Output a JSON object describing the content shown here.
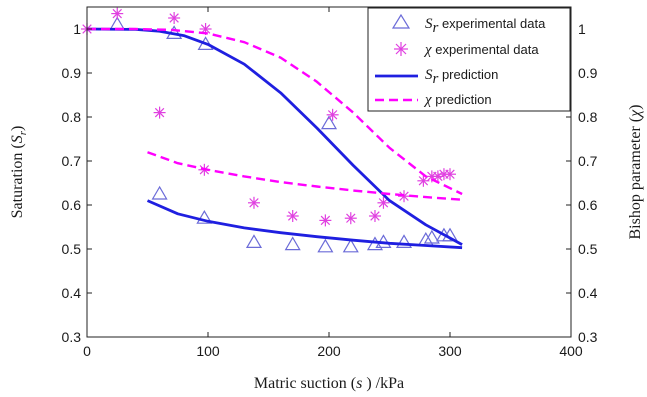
{
  "chart_data": {
    "type": "line",
    "xlabel": {
      "before": "Matric suction (",
      "symbol": "s",
      "after": " ) /kPa"
    },
    "ylabel_left": {
      "before": "Saturation (",
      "symbol": "S",
      "sub": "r",
      "after": ")"
    },
    "ylabel_right": {
      "before": "Bishop parameter (",
      "symbol": "χ",
      "after": ")"
    },
    "xlim": [
      0,
      400
    ],
    "ylim": [
      0.3,
      1.05
    ],
    "x_ticks": [
      0,
      100,
      200,
      300,
      400
    ],
    "y_ticks": [
      0.3,
      0.4,
      0.5,
      0.6,
      0.7,
      0.8,
      0.9,
      1.0
    ],
    "y_tick_labels": [
      "0.3",
      "0.4",
      "0.5",
      "0.6",
      "0.7",
      "0.8",
      "0.9",
      "1"
    ],
    "grid": false,
    "legend_position": "top-right",
    "colors": {
      "sr": "#1f1fe0",
      "chi": "#ff00ff",
      "sr_marker": "#6b6bd8",
      "chi_marker": "#e040e0"
    },
    "series": [
      {
        "name": "S_r experimental data",
        "legend": {
          "symbol": "S",
          "sub": "r",
          "text": " experimental data"
        },
        "kind": "scatter",
        "marker": "triangle",
        "x": [
          25,
          72,
          98,
          60,
          97,
          138,
          170,
          197,
          200,
          218,
          238,
          245,
          262,
          280,
          285,
          295,
          300
        ],
        "y": [
          1.01,
          0.99,
          0.965,
          0.625,
          0.57,
          0.515,
          0.51,
          0.505,
          0.785,
          0.505,
          0.51,
          0.515,
          0.515,
          0.52,
          0.525,
          0.53,
          0.53
        ]
      },
      {
        "name": "χ experimental data",
        "legend": {
          "symbol": "χ",
          "text": " experimental data"
        },
        "kind": "scatter",
        "marker": "asterisk",
        "x": [
          0,
          25,
          72,
          98,
          60,
          97,
          138,
          170,
          197,
          203,
          218,
          238,
          245,
          262,
          278,
          285,
          290,
          295,
          300
        ],
        "y": [
          1.0,
          1.035,
          1.025,
          1.0,
          0.81,
          0.68,
          0.605,
          0.575,
          0.565,
          0.805,
          0.57,
          0.575,
          0.605,
          0.62,
          0.655,
          0.665,
          0.665,
          0.67,
          0.67
        ]
      },
      {
        "name": "S_r prediction",
        "legend": {
          "symbol": "S",
          "sub": "r",
          "text": " prediction"
        },
        "kind": "line",
        "dash": "solid",
        "x": [
          0,
          40,
          60,
          80,
          100,
          130,
          160,
          190,
          220,
          250,
          280,
          310
        ],
        "y": [
          1.0,
          0.999,
          0.995,
          0.985,
          0.965,
          0.92,
          0.855,
          0.775,
          0.69,
          0.61,
          0.555,
          0.51
        ]
      },
      {
        "name": "S_r prediction (drying)",
        "kind": "line",
        "dash": "solid",
        "legend": null,
        "x": [
          50,
          75,
          100,
          130,
          160,
          190,
          220,
          250,
          280,
          310
        ],
        "y": [
          0.61,
          0.58,
          0.563,
          0.548,
          0.537,
          0.528,
          0.52,
          0.513,
          0.508,
          0.503
        ]
      },
      {
        "name": "χ prediction",
        "legend": {
          "symbol": "χ",
          "text": " prediction"
        },
        "kind": "line",
        "dash": "dashed",
        "x": [
          0,
          40,
          70,
          100,
          130,
          160,
          190,
          220,
          250,
          280,
          310
        ],
        "y": [
          1.0,
          1.0,
          0.998,
          0.99,
          0.97,
          0.935,
          0.88,
          0.81,
          0.73,
          0.665,
          0.625
        ]
      },
      {
        "name": "χ prediction (drying)",
        "kind": "line",
        "dash": "dashed",
        "legend": null,
        "x": [
          50,
          75,
          100,
          130,
          160,
          190,
          220,
          250,
          280,
          310
        ],
        "y": [
          0.72,
          0.695,
          0.68,
          0.665,
          0.652,
          0.642,
          0.633,
          0.625,
          0.618,
          0.612
        ]
      }
    ]
  }
}
